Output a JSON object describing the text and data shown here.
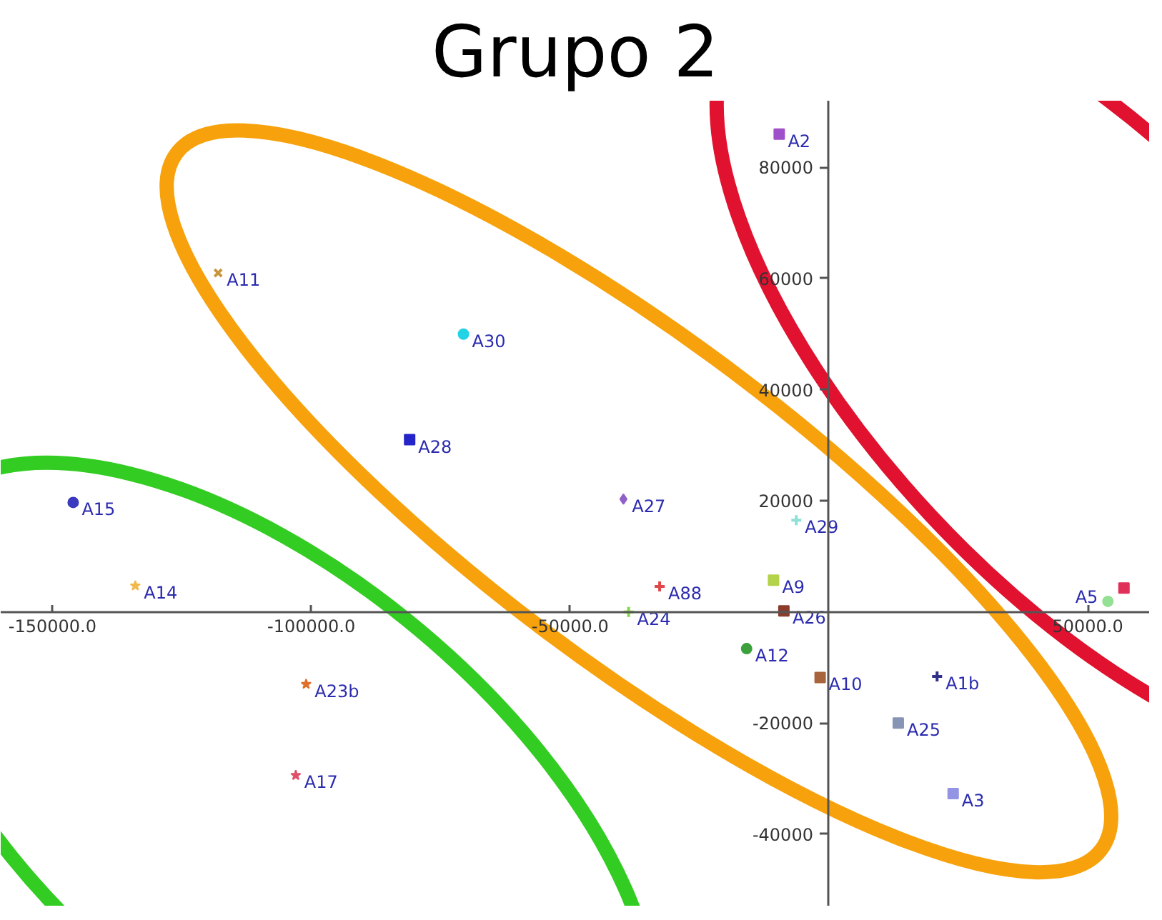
{
  "chart_data": {
    "type": "scatter",
    "title": "Grupo 2",
    "xlim": [
      -160000,
      62000
    ],
    "ylim": [
      -53000,
      92000
    ],
    "xticks": [
      {
        "value": -150000,
        "label": "-150000.0"
      },
      {
        "value": -100000,
        "label": "-100000.0"
      },
      {
        "value": -50000,
        "label": "-50000.0"
      },
      {
        "value": 50000,
        "label": "50000.0"
      }
    ],
    "yticks": [
      -40000,
      -20000,
      20000,
      40000,
      60000,
      80000
    ],
    "series": [
      {
        "name": "A11",
        "color": "#c8963c",
        "marker": "x",
        "x": [
          -118000
        ],
        "values": [
          61000
        ]
      },
      {
        "name": "A30",
        "color": "#22d3e6",
        "marker": "circle",
        "x": [
          -70600
        ],
        "values": [
          50000
        ]
      },
      {
        "name": "A28",
        "color": "#2424c8",
        "marker": "square",
        "x": [
          -81000
        ],
        "values": [
          31000
        ]
      },
      {
        "name": "A15",
        "color": "#3a3ac0",
        "marker": "circle",
        "x": [
          -146000
        ],
        "values": [
          19700
        ]
      },
      {
        "name": "A14",
        "color": "#f2b84a",
        "marker": "star",
        "x": [
          -134000
        ],
        "values": [
          4700
        ]
      },
      {
        "name": "A23b",
        "color": "#e0702a",
        "marker": "star",
        "x": [
          -101000
        ],
        "values": [
          -13000
        ]
      },
      {
        "name": "A17",
        "color": "#e0506a",
        "marker": "star",
        "x": [
          -103000
        ],
        "values": [
          -29400
        ]
      },
      {
        "name": "A2",
        "color": "#a050c8",
        "marker": "square",
        "x": [
          -9600
        ],
        "values": [
          86000
        ]
      },
      {
        "name": "A27",
        "color": "#9060c8",
        "marker": "diamond",
        "x": [
          -39700
        ],
        "values": [
          20300
        ]
      },
      {
        "name": "A29",
        "color": "#8fe0d8",
        "marker": "cross",
        "x": [
          -6300
        ],
        "values": [
          16500
        ]
      },
      {
        "name": "A88",
        "color": "#e04848",
        "marker": "cross",
        "x": [
          -32700
        ],
        "values": [
          4600
        ]
      },
      {
        "name": "A9",
        "color": "#b4d24a",
        "marker": "square",
        "x": [
          -10700
        ],
        "values": [
          5700
        ]
      },
      {
        "name": "A24",
        "color": "#84d84a",
        "marker": "cross",
        "x": [
          -38700
        ],
        "values": [
          0
        ]
      },
      {
        "name": "A26",
        "color": "#8c3c2c",
        "marker": "square",
        "x": [
          -8700
        ],
        "values": [
          200
        ]
      },
      {
        "name": "A12",
        "color": "#3ca03c",
        "marker": "circle",
        "x": [
          -15900
        ],
        "values": [
          -6600
        ]
      },
      {
        "name": "A10",
        "color": "#a8643c",
        "marker": "square",
        "x": [
          -1700
        ],
        "values": [
          -11800
        ]
      },
      {
        "name": "A1b",
        "color": "#30308a",
        "marker": "cross",
        "x": [
          20900
        ],
        "values": [
          -11600
        ]
      },
      {
        "name": "A25",
        "color": "#8894b4",
        "marker": "square",
        "x": [
          13400
        ],
        "values": [
          -20000
        ]
      },
      {
        "name": "A3",
        "color": "#9494e4",
        "marker": "square",
        "x": [
          24000
        ],
        "values": [
          -32700
        ]
      },
      {
        "name": "A5",
        "color": "#94e094",
        "marker": "circle",
        "x": [
          53900
        ],
        "values": [
          1900
        ]
      },
      {
        "color": "#e0305a",
        "marker": "square",
        "x": [
          57000
        ],
        "values": [
          4300
        ]
      }
    ]
  }
}
